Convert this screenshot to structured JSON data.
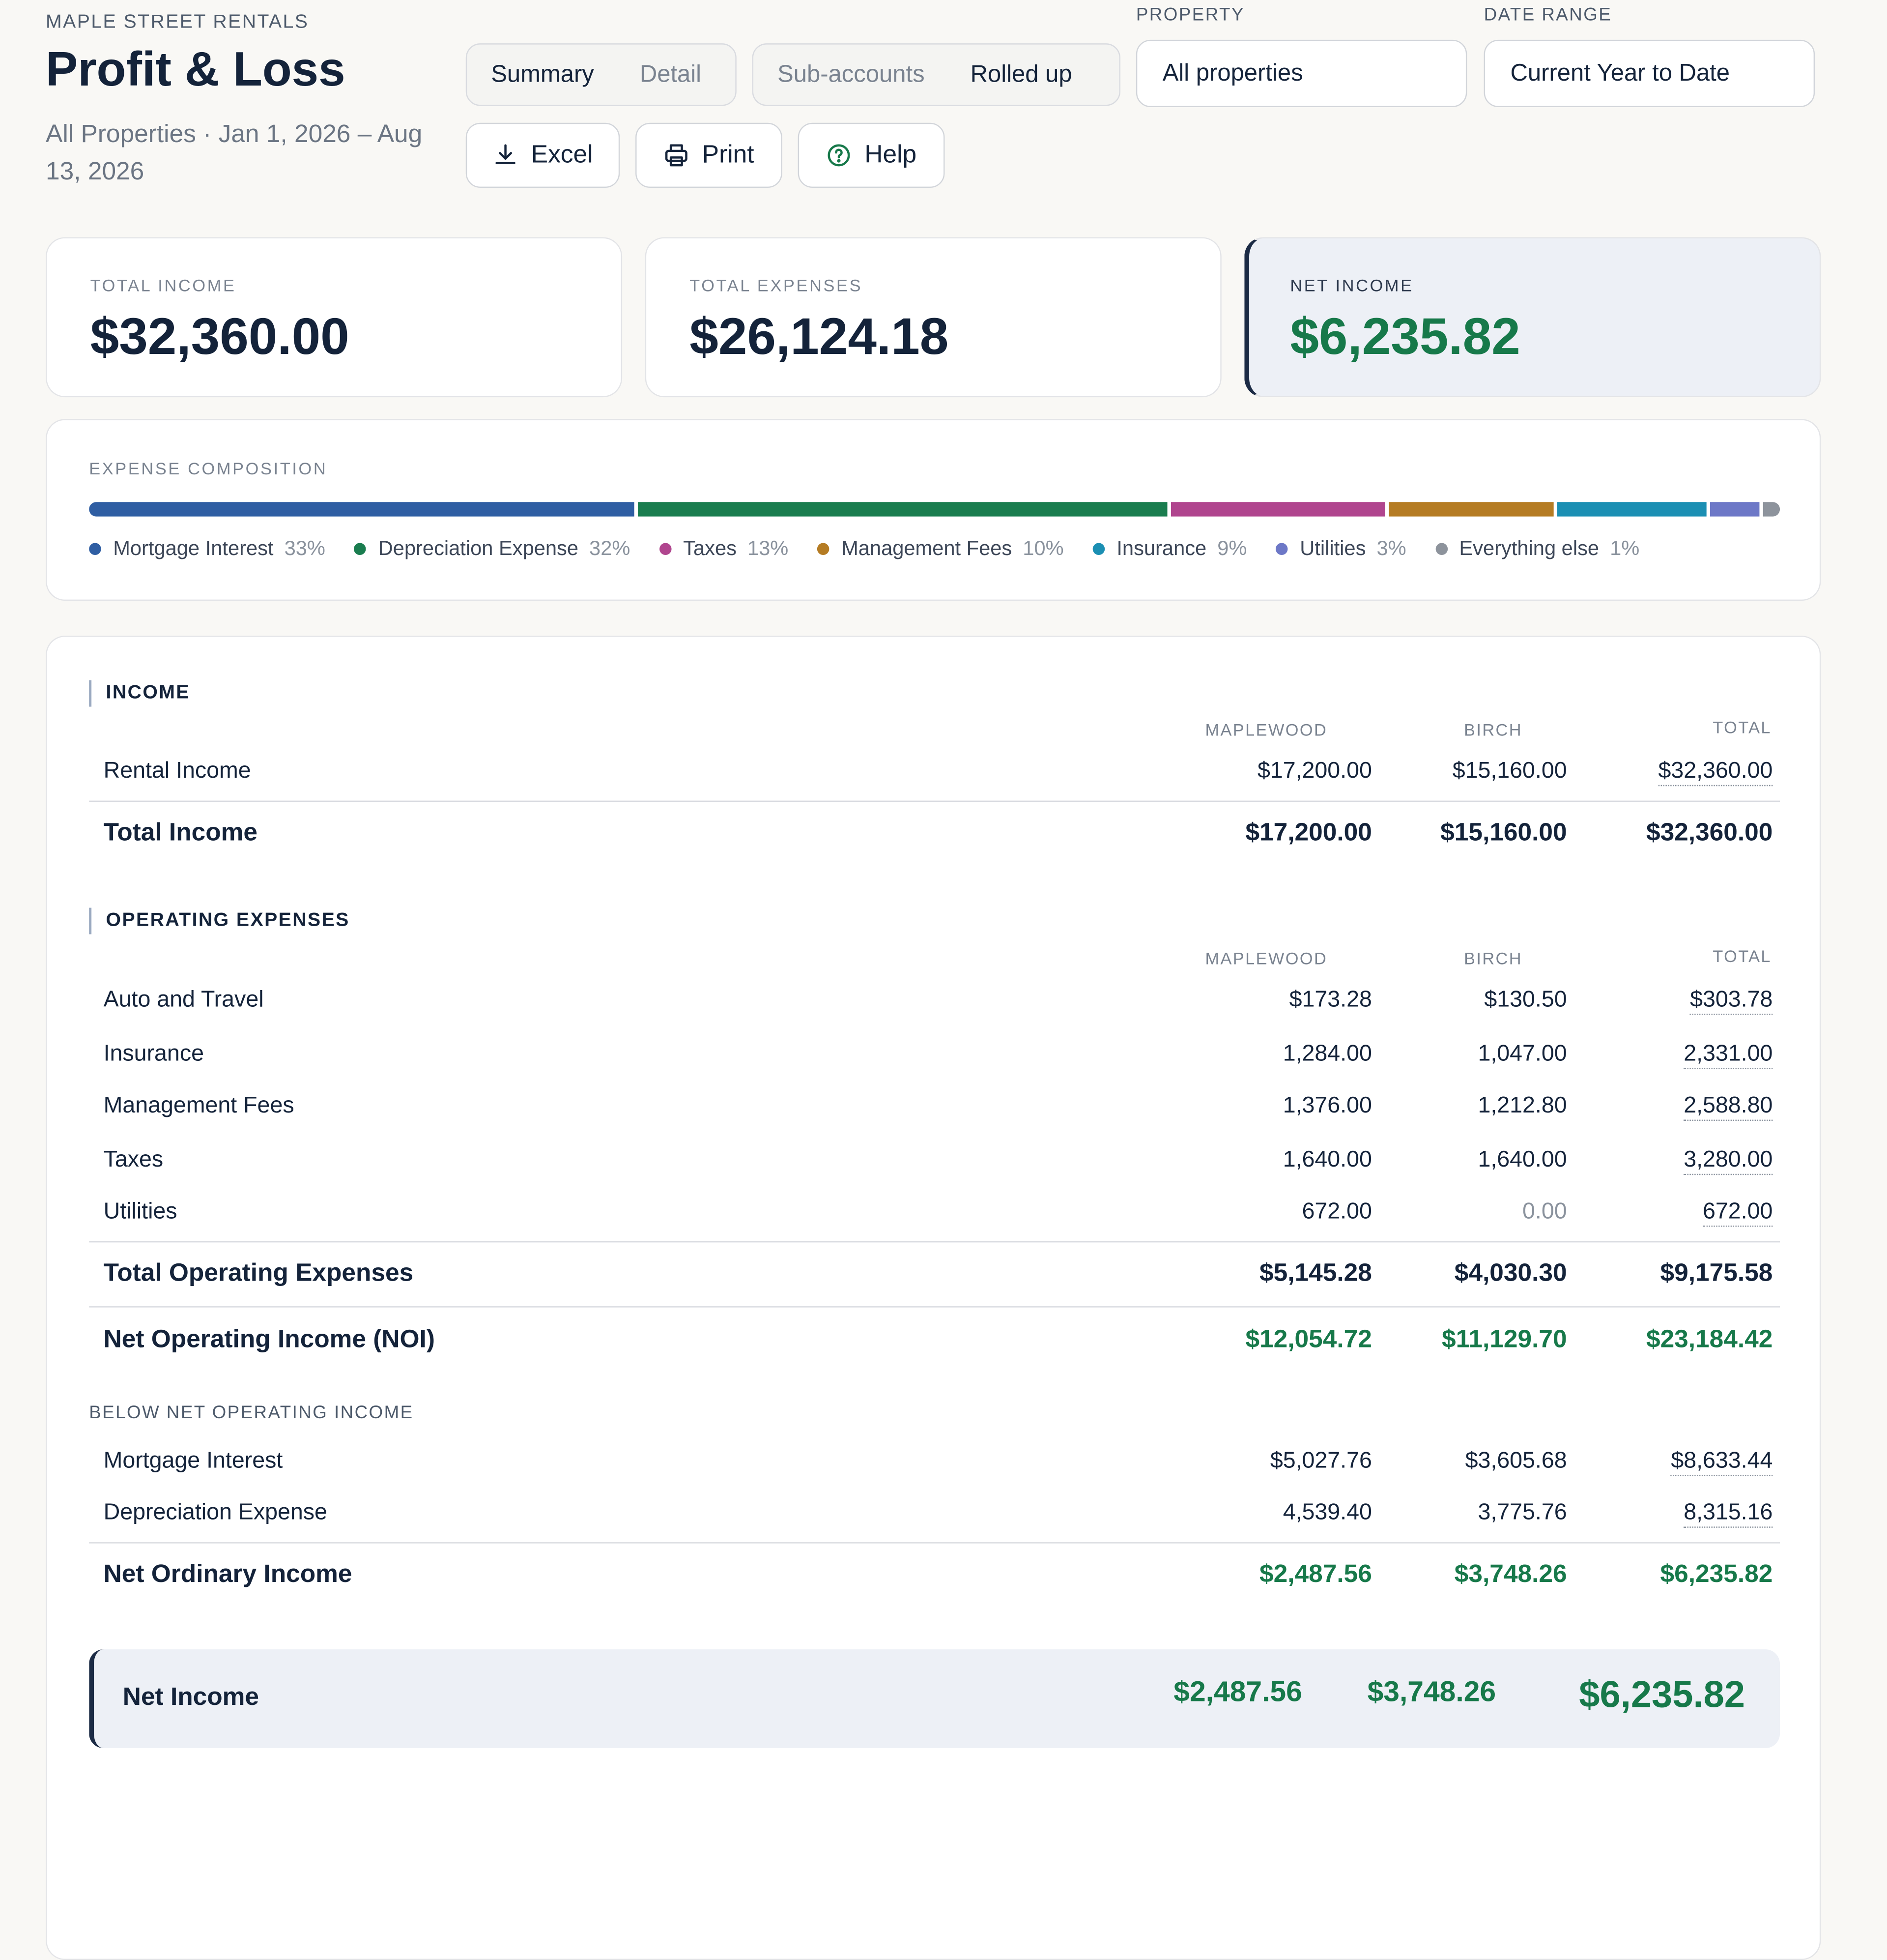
{
  "header": {
    "brand": "MAPLE STREET RENTALS",
    "title": "Profit & Loss",
    "subtitle": "All Properties · Jan 1, 2026 – Aug 13, 2026"
  },
  "view_toggle": {
    "summary": "Summary",
    "detail": "Detail",
    "selected": "Summary"
  },
  "account_toggle": {
    "sub_accounts": "Sub-accounts",
    "rolled_up": "Rolled up",
    "selected": "Rolled up"
  },
  "actions": {
    "excel": "Excel",
    "print": "Print",
    "help": "Help"
  },
  "filters": {
    "property_label": "PROPERTY",
    "property_value": "All properties",
    "date_label": "DATE RANGE",
    "date_value": "Current Year to Date"
  },
  "kpis": {
    "income_label": "TOTAL INCOME",
    "income_value": "$32,360.00",
    "expenses_label": "TOTAL EXPENSES",
    "expenses_value": "$26,124.18",
    "net_label": "NET INCOME",
    "net_value": "$6,235.82"
  },
  "composition": {
    "title": "EXPENSE COMPOSITION",
    "items": [
      {
        "label": "Mortgage Interest",
        "pct": "33%",
        "share": 33,
        "color": "#2f5ea3"
      },
      {
        "label": "Depreciation Expense",
        "pct": "32%",
        "share": 32,
        "color": "#1a7d4f"
      },
      {
        "label": "Taxes",
        "pct": "13%",
        "share": 13,
        "color": "#b0458e"
      },
      {
        "label": "Management Fees",
        "pct": "10%",
        "share": 10,
        "color": "#b57c24"
      },
      {
        "label": "Insurance",
        "pct": "9%",
        "share": 9,
        "color": "#1b8fb3"
      },
      {
        "label": "Utilities",
        "pct": "3%",
        "share": 3,
        "color": "#6d78c7"
      },
      {
        "label": "Everything else",
        "pct": "1%",
        "share": 1,
        "color": "#8d939c"
      }
    ]
  },
  "columns": {
    "c1": "MAPLEWOOD",
    "c2": "BIRCH",
    "c3": "TOTAL"
  },
  "income": {
    "title": "INCOME",
    "rows": [
      {
        "name": "Rental Income",
        "c1": "$17,200.00",
        "c2": "$15,160.00",
        "c3": "$32,360.00"
      }
    ],
    "total": {
      "name": "Total Income",
      "c1": "$17,200.00",
      "c2": "$15,160.00",
      "c3": "$32,360.00"
    }
  },
  "operating": {
    "title": "OPERATING EXPENSES",
    "rows": [
      {
        "name": "Auto and Travel",
        "c1": "$173.28",
        "c2": "$130.50",
        "c3": "$303.78"
      },
      {
        "name": "Insurance",
        "c1": "1,284.00",
        "c2": "1,047.00",
        "c3": "2,331.00"
      },
      {
        "name": "Management Fees",
        "c1": "1,376.00",
        "c2": "1,212.80",
        "c3": "2,588.80"
      },
      {
        "name": "Taxes",
        "c1": "1,640.00",
        "c2": "1,640.00",
        "c3": "3,280.00"
      },
      {
        "name": "Utilities",
        "c1": "672.00",
        "c2": "0.00",
        "c3": "672.00"
      }
    ],
    "total": {
      "name": "Total Operating Expenses",
      "c1": "$5,145.28",
      "c2": "$4,030.30",
      "c3": "$9,175.58"
    },
    "noi": {
      "name": "Net Operating Income (NOI)",
      "c1": "$12,054.72",
      "c2": "$11,129.70",
      "c3": "$23,184.42"
    }
  },
  "below": {
    "title": "BELOW NET OPERATING INCOME",
    "rows": [
      {
        "name": "Mortgage Interest",
        "c1": "$5,027.76",
        "c2": "$3,605.68",
        "c3": "$8,633.44"
      },
      {
        "name": "Depreciation Expense",
        "c1": "4,539.40",
        "c2": "3,775.76",
        "c3": "8,315.16"
      }
    ],
    "total": {
      "name": "Net Ordinary Income",
      "c1": "$2,487.56",
      "c2": "$3,748.26",
      "c3": "$6,235.82"
    }
  },
  "net_income": {
    "name": "Net Income",
    "c1": "$2,487.56",
    "c2": "$3,748.26",
    "c3": "$6,235.82"
  }
}
